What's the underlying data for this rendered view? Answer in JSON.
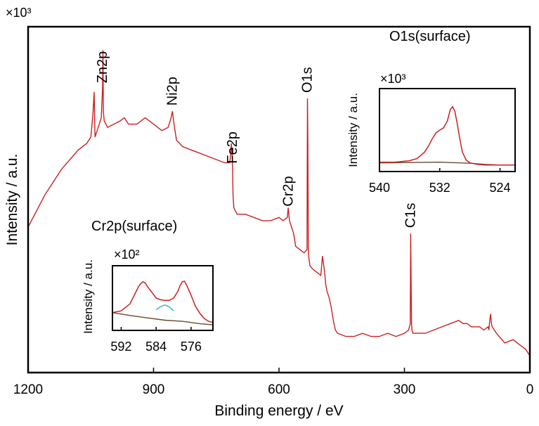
{
  "colors": {
    "spectrum": "#cc1f1f",
    "background_fit": "#6b4a2a",
    "component": "#29b6c8",
    "axis": "#000000"
  },
  "chart_data": [
    {
      "id": "main",
      "type": "line",
      "title": "",
      "xlabel": "Binding energy / eV",
      "ylabel": "Intensity / a.u.",
      "multiplier": "×10³",
      "xlim": [
        1200,
        0
      ],
      "ylim": [
        0,
        100
      ],
      "xticks": [
        1200,
        900,
        600,
        300,
        0
      ],
      "xtick_labels": [
        "1200",
        "900",
        "600",
        "300",
        "0"
      ],
      "series": [
        {
          "name": "Survey spectrum",
          "x": [
            1200,
            1160,
            1120,
            1080,
            1060,
            1050,
            1045,
            1042,
            1040,
            1035,
            1025,
            1022,
            1021,
            1020,
            1018,
            1010,
            980,
            970,
            960,
            940,
            920,
            900,
            880,
            865,
            858,
            855,
            850,
            845,
            830,
            810,
            790,
            770,
            750,
            730,
            718,
            716,
            714,
            712,
            711,
            710,
            708,
            700,
            680,
            660,
            640,
            620,
            600,
            590,
            580,
            578,
            575,
            570,
            565,
            560,
            550,
            540,
            533,
            532,
            531,
            530,
            529,
            528,
            526,
            520,
            510,
            500,
            496,
            494,
            493,
            491,
            488,
            485,
            480,
            475,
            470,
            465,
            460,
            440,
            420,
            400,
            380,
            360,
            340,
            320,
            300,
            290,
            286,
            285,
            284,
            283,
            282,
            280,
            270,
            250,
            230,
            210,
            190,
            170,
            160,
            158,
            155,
            150,
            140,
            120,
            110,
            100,
            98,
            96,
            94,
            92,
            90,
            80,
            60,
            40,
            20,
            10,
            5,
            0
          ],
          "y": [
            42,
            52,
            60,
            66,
            68,
            70,
            77,
            84,
            70,
            72,
            76,
            85,
            97,
            78,
            75,
            73,
            75,
            76,
            74,
            74,
            76,
            74,
            72,
            73,
            76,
            78,
            73,
            69,
            67,
            66,
            65,
            64,
            63,
            62,
            62,
            64,
            68,
            64,
            60,
            52,
            48,
            46,
            46,
            45,
            44,
            44,
            45,
            44,
            45,
            48,
            44,
            42,
            40,
            36,
            35,
            34,
            35,
            82,
            68,
            36,
            33,
            32,
            30,
            29,
            28,
            27,
            33,
            31,
            30,
            28,
            24,
            22,
            20,
            17,
            13,
            10,
            9,
            8,
            8,
            9,
            8,
            8,
            9,
            8,
            9,
            10,
            12,
            40,
            26,
            12,
            10,
            9,
            9,
            9,
            10,
            11,
            12,
            13,
            12,
            12,
            12,
            12,
            11,
            11,
            10,
            11,
            10,
            13,
            15,
            12,
            11,
            9,
            6,
            7,
            5,
            4,
            3,
            2
          ]
        }
      ],
      "peak_labels": [
        {
          "text": "Zn2p",
          "x": 1022
        },
        {
          "text": "Ni2p",
          "x": 855
        },
        {
          "text": "Fe2p",
          "x": 711
        },
        {
          "text": "Cr2p",
          "x": 577
        },
        {
          "text": "O1s",
          "x": 532
        },
        {
          "text": "C1s",
          "x": 285
        }
      ]
    },
    {
      "id": "inset_o1s",
      "type": "line",
      "title": "O1s(surface)",
      "xlabel": "",
      "ylabel": "Intensity / a.u.",
      "multiplier": "×10³",
      "xlim": [
        540,
        522
      ],
      "ylim": [
        0,
        100
      ],
      "xticks": [
        540,
        532,
        524
      ],
      "xtick_labels": [
        "540",
        "532",
        "524"
      ],
      "series": [
        {
          "name": "O1s spectrum",
          "x": [
            540,
            538,
            536,
            535,
            534,
            533.5,
            533,
            532.5,
            532,
            531.5,
            531,
            530.6,
            530.3,
            530,
            529.7,
            529.3,
            529,
            528.5,
            528,
            527,
            526,
            525,
            524,
            523,
            522
          ],
          "y": [
            6,
            6,
            8,
            11,
            20,
            28,
            38,
            46,
            50,
            53,
            62,
            78,
            82,
            76,
            60,
            36,
            20,
            9,
            5,
            3,
            2,
            2,
            2,
            2,
            2
          ]
        },
        {
          "name": "Background",
          "x": [
            540,
            536,
            532,
            528,
            526,
            524,
            522
          ],
          "y": [
            5,
            5.5,
            6,
            4.5,
            3,
            2,
            2
          ]
        }
      ]
    },
    {
      "id": "inset_cr2p",
      "type": "line",
      "title": "Cr2p(surface)",
      "xlabel": "",
      "ylabel": "Intensity / a.u.",
      "multiplier": "×10²",
      "xlim": [
        594,
        571
      ],
      "ylim": [
        0,
        100
      ],
      "xticks": [
        592,
        584,
        576
      ],
      "xtick_labels": [
        "592",
        "584",
        "576"
      ],
      "series": [
        {
          "name": "Cr2p spectrum",
          "x": [
            594,
            592,
            590,
            589,
            588,
            587.5,
            587,
            586.5,
            586,
            585,
            584,
            583,
            582,
            581,
            580,
            579,
            578.5,
            578,
            577.5,
            577,
            576,
            575,
            574,
            573,
            572,
            571
          ],
          "y": [
            25,
            28,
            40,
            55,
            70,
            75,
            78,
            76,
            70,
            60,
            50,
            47,
            46,
            46,
            50,
            62,
            72,
            78,
            79,
            72,
            55,
            36,
            24,
            15,
            10,
            8
          ]
        },
        {
          "name": "Background",
          "x": [
            594,
            590,
            586,
            582,
            578,
            574,
            571
          ],
          "y": [
            25,
            20,
            16,
            12,
            10,
            6,
            4
          ]
        },
        {
          "name": "Component",
          "x": [
            584,
            583,
            582,
            581,
            580
          ],
          "y": [
            30,
            35,
            38,
            35,
            28
          ]
        }
      ]
    }
  ]
}
